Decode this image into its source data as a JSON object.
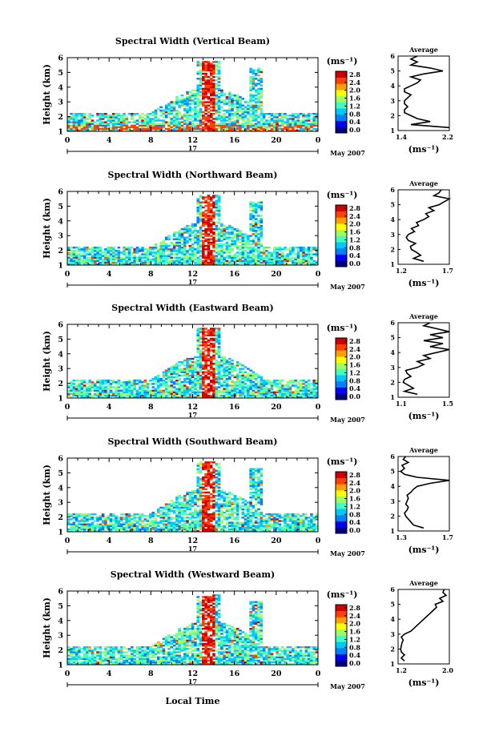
{
  "figure": {
    "time_axis_label": "Local Time",
    "date_label": "May 2007",
    "day_label": "17",
    "x_ticks": [
      "0",
      "4",
      "8",
      "12",
      "16",
      "20",
      "0"
    ],
    "y_ticks": [
      "1",
      "2",
      "3",
      "4",
      "5",
      "6"
    ],
    "y_label": "Height (km)",
    "colorbar_unit": "(ms⁻¹)",
    "colorbar_ticks": [
      "2.8",
      "2.4",
      "2.0",
      "1.6",
      "1.2",
      "0.8",
      "0.4",
      "0.0"
    ],
    "avg_title": "Average",
    "avg_unit": "(ms⁻¹)",
    "colors": {
      "colormap": [
        "#000080",
        "#0000ff",
        "#0080ff",
        "#00c8ff",
        "#40ffc0",
        "#a0ff60",
        "#ffff00",
        "#ffa000",
        "#ff4000",
        "#d00000"
      ]
    }
  },
  "chart_data": [
    {
      "type": "heatmap",
      "title": "Spectral Width (Vertical Beam)",
      "xlabel": "Local Time",
      "ylabel": "Height (km)",
      "xlim": [
        0,
        24
      ],
      "ylim": [
        1,
        6
      ],
      "clim": [
        0.0,
        2.8
      ],
      "colorbar_label": "(ms⁻¹)",
      "description_hours_of_high_width": [
        13.0,
        14.0
      ],
      "profile": {
        "title": "Average",
        "xlabel": "(ms⁻¹)",
        "xlim": [
          1.4,
          2.2
        ],
        "xticks": [
          "1.4",
          "2.2"
        ],
        "heights": [
          1.2,
          1.4,
          1.6,
          1.8,
          2.0,
          2.2,
          2.4,
          2.6,
          2.8,
          3.0,
          3.2,
          3.4,
          3.6,
          3.8,
          4.0,
          4.2,
          4.4,
          4.6,
          4.8,
          5.0,
          5.2,
          5.4,
          5.6,
          5.8,
          6.0
        ],
        "values": [
          2.2,
          1.6,
          1.9,
          1.7,
          1.6,
          1.5,
          1.5,
          1.55,
          1.5,
          1.5,
          1.55,
          1.6,
          1.5,
          1.5,
          1.6,
          1.7,
          1.75,
          1.6,
          1.8,
          2.1,
          1.9,
          1.6,
          1.7,
          1.6,
          1.7
        ]
      }
    },
    {
      "type": "heatmap",
      "title": "Spectral Width (Northward Beam)",
      "xlabel": "Local Time",
      "ylabel": "Height (km)",
      "xlim": [
        0,
        24
      ],
      "ylim": [
        1,
        6
      ],
      "clim": [
        0.0,
        2.8
      ],
      "colorbar_label": "(ms⁻¹)",
      "profile": {
        "title": "Average",
        "xlabel": "(ms⁻¹)",
        "xlim": [
          1.2,
          1.7
        ],
        "xticks": [
          "1.2",
          "1.7"
        ],
        "heights": [
          1.2,
          1.4,
          1.6,
          1.8,
          2.0,
          2.2,
          2.4,
          2.6,
          2.8,
          3.0,
          3.2,
          3.4,
          3.6,
          3.8,
          4.0,
          4.2,
          4.4,
          4.6,
          4.8,
          5.0,
          5.2,
          5.4,
          5.6,
          5.8,
          6.0
        ],
        "values": [
          1.45,
          1.35,
          1.42,
          1.38,
          1.33,
          1.32,
          1.37,
          1.3,
          1.28,
          1.3,
          1.36,
          1.33,
          1.4,
          1.38,
          1.45,
          1.5,
          1.47,
          1.55,
          1.5,
          1.6,
          1.65,
          1.7,
          1.55,
          1.6,
          1.62
        ]
      }
    },
    {
      "type": "heatmap",
      "title": "Spectral Width (Eastward Beam)",
      "xlabel": "Local Time",
      "ylabel": "Height (km)",
      "xlim": [
        0,
        24
      ],
      "ylim": [
        1,
        6
      ],
      "clim": [
        0.0,
        2.8
      ],
      "colorbar_label": "(ms⁻¹)",
      "profile": {
        "title": "Average",
        "xlabel": "(ms⁻¹)",
        "xlim": [
          1.1,
          1.5
        ],
        "xticks": [
          "1.1",
          "1.5"
        ],
        "heights": [
          1.2,
          1.4,
          1.6,
          1.8,
          2.0,
          2.2,
          2.4,
          2.6,
          2.8,
          3.0,
          3.2,
          3.4,
          3.6,
          3.8,
          4.0,
          4.2,
          4.4,
          4.6,
          4.8,
          5.0,
          5.2,
          5.4,
          5.6,
          5.8,
          6.0
        ],
        "values": [
          1.25,
          1.15,
          1.22,
          1.18,
          1.14,
          1.15,
          1.2,
          1.17,
          1.16,
          1.25,
          1.3,
          1.25,
          1.35,
          1.3,
          1.4,
          1.5,
          1.35,
          1.45,
          1.3,
          1.45,
          1.35,
          1.5,
          1.4,
          1.3,
          1.35
        ]
      }
    },
    {
      "type": "heatmap",
      "title": "Spectral Width (Southward Beam)",
      "xlabel": "Local Time",
      "ylabel": "Height (km)",
      "xlim": [
        0,
        24
      ],
      "ylim": [
        1,
        6
      ],
      "clim": [
        0.0,
        2.8
      ],
      "colorbar_label": "(ms⁻¹)",
      "profile": {
        "title": "Average",
        "xlabel": "(ms⁻¹)",
        "xlim": [
          1.3,
          1.7
        ],
        "xticks": [
          "1.3",
          "1.7"
        ],
        "heights": [
          1.2,
          1.4,
          1.6,
          1.8,
          2.0,
          2.2,
          2.4,
          2.6,
          2.8,
          3.0,
          3.2,
          3.4,
          3.6,
          3.8,
          4.0,
          4.2,
          4.4,
          4.6,
          4.8,
          5.0,
          5.2,
          5.4,
          5.6,
          5.8,
          6.0
        ],
        "values": [
          1.5,
          1.42,
          1.4,
          1.38,
          1.36,
          1.35,
          1.37,
          1.38,
          1.36,
          1.37,
          1.38,
          1.37,
          1.4,
          1.42,
          1.45,
          1.55,
          1.7,
          1.45,
          1.35,
          1.32,
          1.35,
          1.33,
          1.38,
          1.34,
          1.36
        ]
      }
    },
    {
      "type": "heatmap",
      "title": "Spectral Width (Westward Beam)",
      "xlabel": "Local Time",
      "ylabel": "Height (km)",
      "xlim": [
        0,
        24
      ],
      "ylim": [
        1,
        6
      ],
      "clim": [
        0.0,
        2.8
      ],
      "colorbar_label": "(ms⁻¹)",
      "profile": {
        "title": "Average",
        "xlabel": "(ms⁻¹)",
        "xlim": [
          1.2,
          2.0
        ],
        "xticks": [
          "1.2",
          "2.0"
        ],
        "heights": [
          1.2,
          1.4,
          1.6,
          1.8,
          2.0,
          2.2,
          2.4,
          2.6,
          2.8,
          3.0,
          3.2,
          3.4,
          3.6,
          3.8,
          4.0,
          4.2,
          4.4,
          4.6,
          4.8,
          5.0,
          5.2,
          5.4,
          5.6,
          5.8,
          6.0
        ],
        "values": [
          1.3,
          1.25,
          1.3,
          1.25,
          1.24,
          1.25,
          1.26,
          1.28,
          1.25,
          1.3,
          1.4,
          1.45,
          1.5,
          1.55,
          1.6,
          1.65,
          1.7,
          1.75,
          1.8,
          1.78,
          1.9,
          1.85,
          1.95,
          1.9,
          1.92
        ]
      }
    }
  ]
}
